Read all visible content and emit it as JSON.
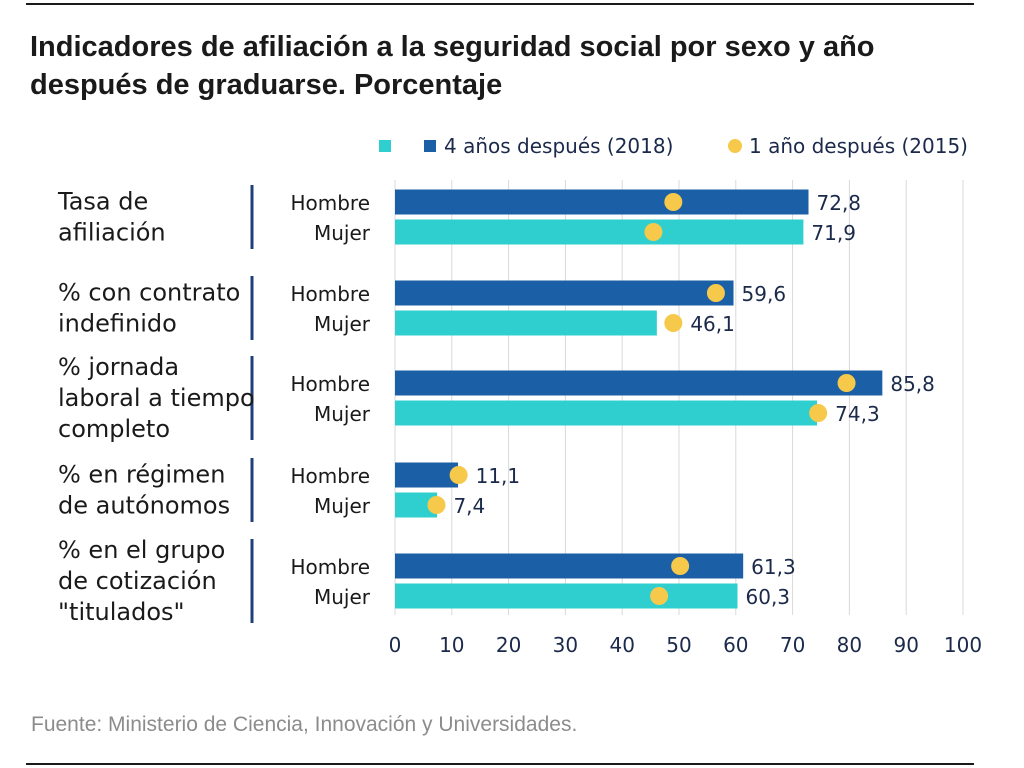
{
  "title": "Indicadores de afiliación a la seguridad social por sexo y año después de graduarse. Porcentaje",
  "source": "Fuente: Ministerio de Ciencia, Innovación y Universidades.",
  "colors": {
    "hombre_bar": "#1b5fa6",
    "mujer_bar": "#2fcfcf",
    "dot": "#f6c94b",
    "text": "#1b2a4a",
    "grid": "#d9d9d9",
    "group_line": "#1f3f7a"
  },
  "chart_data": {
    "type": "bar",
    "orientation": "horizontal",
    "xlim": [
      0,
      100
    ],
    "x_ticks": [
      "0",
      "10",
      "20",
      "30",
      "40",
      "50",
      "60",
      "70",
      "80",
      "90",
      "100"
    ],
    "x_tick_values": [
      0,
      10,
      20,
      30,
      40,
      50,
      60,
      70,
      80,
      90,
      100
    ],
    "grid": true,
    "legend_position": "top",
    "legend": [
      {
        "label": "",
        "marker": "square",
        "color": "#2fcfcf"
      },
      {
        "label": "4 años  después (2018)",
        "marker": "square",
        "color": "#1b5fa6"
      },
      {
        "label": "1 año después (2015)",
        "marker": "dot",
        "color": "#f6c94b"
      }
    ],
    "groups": [
      {
        "label": [
          "Tasa de",
          "afiliación"
        ],
        "bars": [
          {
            "sex": "Hombre",
            "value": 72.8,
            "label": "72,8",
            "dot": 49
          },
          {
            "sex": "Mujer",
            "value": 71.9,
            "label": "71,9",
            "dot": 45.5
          }
        ]
      },
      {
        "label": [
          "% con contrato",
          "indefinido"
        ],
        "bars": [
          {
            "sex": "Hombre",
            "value": 59.6,
            "label": "59,6",
            "dot": 56.5
          },
          {
            "sex": "Mujer",
            "value": 46.1,
            "label": "46,1",
            "dot": 49
          }
        ]
      },
      {
        "label": [
          "% jornada",
          "laboral a tiempo",
          "completo"
        ],
        "bars": [
          {
            "sex": "Hombre",
            "value": 85.8,
            "label": "85,8",
            "dot": 79.5
          },
          {
            "sex": "Mujer",
            "value": 74.3,
            "label": "74,3",
            "dot": 74.5
          }
        ]
      },
      {
        "label": [
          "% en régimen",
          "de autónomos"
        ],
        "bars": [
          {
            "sex": "Hombre",
            "value": 11.1,
            "label": "11,1",
            "dot": 11.2
          },
          {
            "sex": "Mujer",
            "value": 7.4,
            "label": "7,4",
            "dot": 7.3
          }
        ]
      },
      {
        "label": [
          "% en el grupo",
          "de cotización",
          "\"titulados\""
        ],
        "bars": [
          {
            "sex": "Hombre",
            "value": 61.3,
            "label": "61,3",
            "dot": 50.2
          },
          {
            "sex": "Mujer",
            "value": 60.3,
            "label": "60,3",
            "dot": 46.5
          }
        ]
      }
    ]
  }
}
